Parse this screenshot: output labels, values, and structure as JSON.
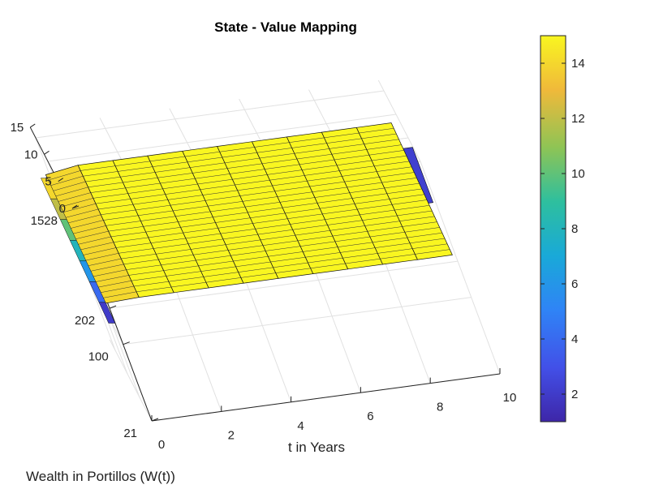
{
  "chart_data": {
    "type": "surface",
    "title": "State - Value Mapping",
    "xlabel": "t in Years",
    "ylabel": "Wealth in Portillos (W(t))",
    "zlabel": "",
    "x_ticks": [
      "0",
      "2",
      "4",
      "6",
      "8",
      "10"
    ],
    "y_ticks": [
      "21",
      "100",
      "202",
      "1528"
    ],
    "z_ticks": [
      "0",
      "5",
      "10",
      "15"
    ],
    "xlim": [
      0,
      10
    ],
    "zlim": [
      0,
      15
    ],
    "grid": true,
    "colormap": "parula",
    "colorbar": {
      "ticks": [
        "2",
        "4",
        "6",
        "8",
        "10",
        "12",
        "14"
      ],
      "range": [
        1,
        15
      ],
      "location": "right"
    },
    "surface_summary": {
      "t": [
        0,
        1,
        2,
        3,
        4,
        5,
        6,
        7,
        8,
        9,
        10
      ],
      "value_at_high_wealth": [
        3,
        3,
        3,
        3,
        3,
        3,
        3,
        3,
        3,
        3,
        3
      ],
      "value_at_low_wealth": [
        14,
        15,
        15,
        15,
        15,
        15,
        15,
        15,
        15,
        15,
        15
      ],
      "peak_value": 15,
      "min_value": 1
    }
  }
}
